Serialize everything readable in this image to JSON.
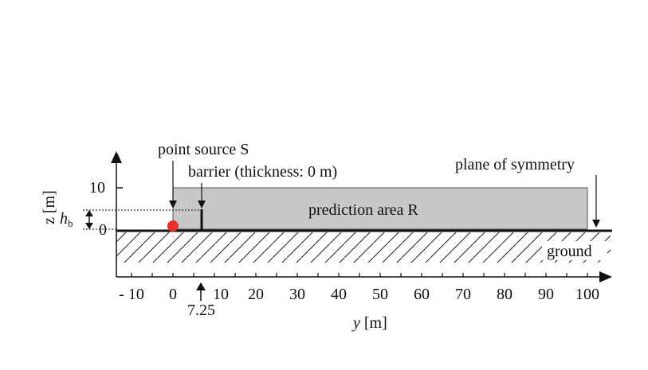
{
  "labels": {
    "point_source": "point source S",
    "barrier": "barrier (thickness: 0 m)",
    "plane_of_symmetry": "plane of symmetry",
    "prediction_area": "prediction area R",
    "ground": "ground",
    "barrier_position": "7.25",
    "z_axis_label": "z [m]",
    "hb_main": "h",
    "hb_sub": "b"
  },
  "y_axis": {
    "label_var": "y",
    "label_unit": " [m]",
    "ticks": [
      "- 10",
      "0",
      "10",
      "20",
      "30",
      "40",
      "50",
      "60",
      "70",
      "80",
      "90",
      "100"
    ]
  },
  "z_axis": {
    "ticks": [
      "10",
      "0"
    ]
  },
  "colors": {
    "prediction_area_fill": "#c8c8c8",
    "source_dot": "#e8302a",
    "ink": "#111111"
  }
}
